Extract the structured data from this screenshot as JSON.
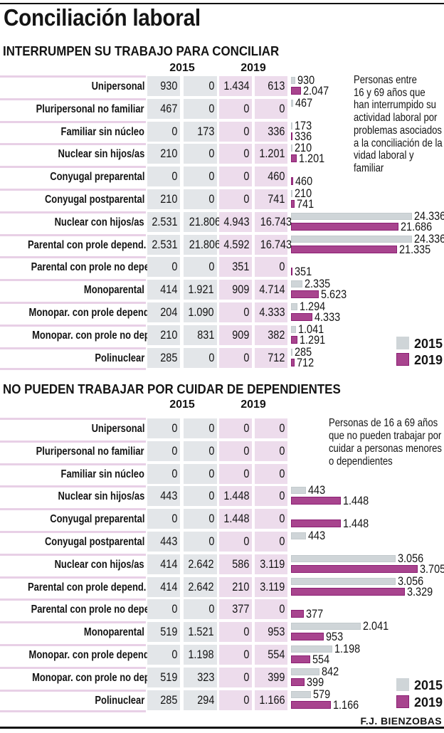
{
  "header": {
    "title": "Conciliación laboral"
  },
  "credit": "F.J. BIENZOBAS",
  "chart_data": [
    {
      "type": "bar",
      "title": "INTERRUMPEN SU TRABAJO PARA CONCILIAR",
      "year_headers": [
        "2015",
        "2019"
      ],
      "note": [
        "Personas entre",
        "16 y 69 años que",
        "han interrumpido su",
        "actividad laboral por",
        "problemas asociados",
        "a la conciliación de la",
        "vidad laboral y",
        "familiar"
      ],
      "legend": [
        {
          "label": "2015",
          "color": "#cfd5d8"
        },
        {
          "label": "2019",
          "color": "#a8448e"
        }
      ],
      "legend_position": "bottom-right",
      "xlim": [
        0,
        25000
      ],
      "categories": [
        "Unipersonal",
        "Pluripersonal no familiar",
        "Familiar sin núcleo",
        "Nuclear sin hijos/as",
        "Conyugal preparental",
        "Conyugal postparental",
        "Nuclear con hijos/as",
        "Parental con prole depend.",
        "Parental con prole no depend.",
        "Monoparental",
        "Monopar. con prole depend.",
        "Monopar. con prole no depend.",
        "Polinuclear"
      ],
      "table": [
        [
          930,
          0,
          1434,
          613
        ],
        [
          467,
          0,
          0,
          0
        ],
        [
          0,
          173,
          0,
          336
        ],
        [
          210,
          0,
          0,
          1201
        ],
        [
          0,
          0,
          0,
          460
        ],
        [
          210,
          0,
          0,
          741
        ],
        [
          2531,
          21806,
          4943,
          16743
        ],
        [
          2531,
          21806,
          4592,
          16743
        ],
        [
          0,
          0,
          351,
          0
        ],
        [
          414,
          1921,
          909,
          4714
        ],
        [
          204,
          1090,
          0,
          4333
        ],
        [
          210,
          831,
          909,
          382
        ],
        [
          285,
          0,
          0,
          712
        ]
      ],
      "series": [
        {
          "name": "2015",
          "color": "#cfd5d8",
          "values": [
            930,
            467,
            173,
            210,
            0,
            210,
            24336,
            24336,
            0,
            2335,
            1294,
            1041,
            285
          ]
        },
        {
          "name": "2019",
          "color": "#a8448e",
          "values": [
            2047,
            0,
            336,
            1201,
            460,
            741,
            21686,
            21335,
            351,
            5623,
            4333,
            1291,
            712
          ]
        }
      ]
    },
    {
      "type": "bar",
      "title": "NO PUEDEN TRABAJAR POR CUIDAR DE DEPENDIENTES",
      "year_headers": [
        "2015",
        "2019"
      ],
      "note": [
        "Personas de 16 a 69 años",
        "que no pueden trabajar por",
        "cuidar a personas menores",
        "o dependientes"
      ],
      "legend": [
        {
          "label": "2015",
          "color": "#cfd5d8"
        },
        {
          "label": "2019",
          "color": "#a8448e"
        }
      ],
      "legend_position": "bottom-right",
      "xlim": [
        0,
        4000
      ],
      "categories": [
        "Unipersonal",
        "Pluripersonal no familiar",
        "Familiar sin núcleo",
        "Nuclear sin hijos/as",
        "Conyugal preparental",
        "Conyugal postparental",
        "Nuclear con hijos/as",
        "Parental con prole depend.",
        "Parental con prole no depend.",
        "Monoparental",
        "Monopar. con prole depend.",
        "Monopar. con prole no depend.",
        "Polinuclear"
      ],
      "table": [
        [
          0,
          0,
          0,
          0
        ],
        [
          0,
          0,
          0,
          0
        ],
        [
          0,
          0,
          0,
          0
        ],
        [
          443,
          0,
          1448,
          0
        ],
        [
          0,
          0,
          1448,
          0
        ],
        [
          443,
          0,
          0,
          0
        ],
        [
          414,
          2642,
          586,
          3119
        ],
        [
          414,
          2642,
          210,
          3119
        ],
        [
          0,
          0,
          377,
          0
        ],
        [
          519,
          1521,
          0,
          953
        ],
        [
          0,
          1198,
          0,
          554
        ],
        [
          519,
          323,
          0,
          399
        ],
        [
          285,
          294,
          0,
          1166
        ]
      ],
      "series": [
        {
          "name": "2015",
          "color": "#cfd5d8",
          "values": [
            0,
            0,
            0,
            443,
            0,
            443,
            3056,
            3056,
            0,
            2041,
            1198,
            842,
            579
          ]
        },
        {
          "name": "2019",
          "color": "#a8448e",
          "values": [
            0,
            0,
            0,
            1448,
            1448,
            0,
            3705,
            3329,
            377,
            953,
            554,
            399,
            1166
          ]
        }
      ]
    }
  ]
}
